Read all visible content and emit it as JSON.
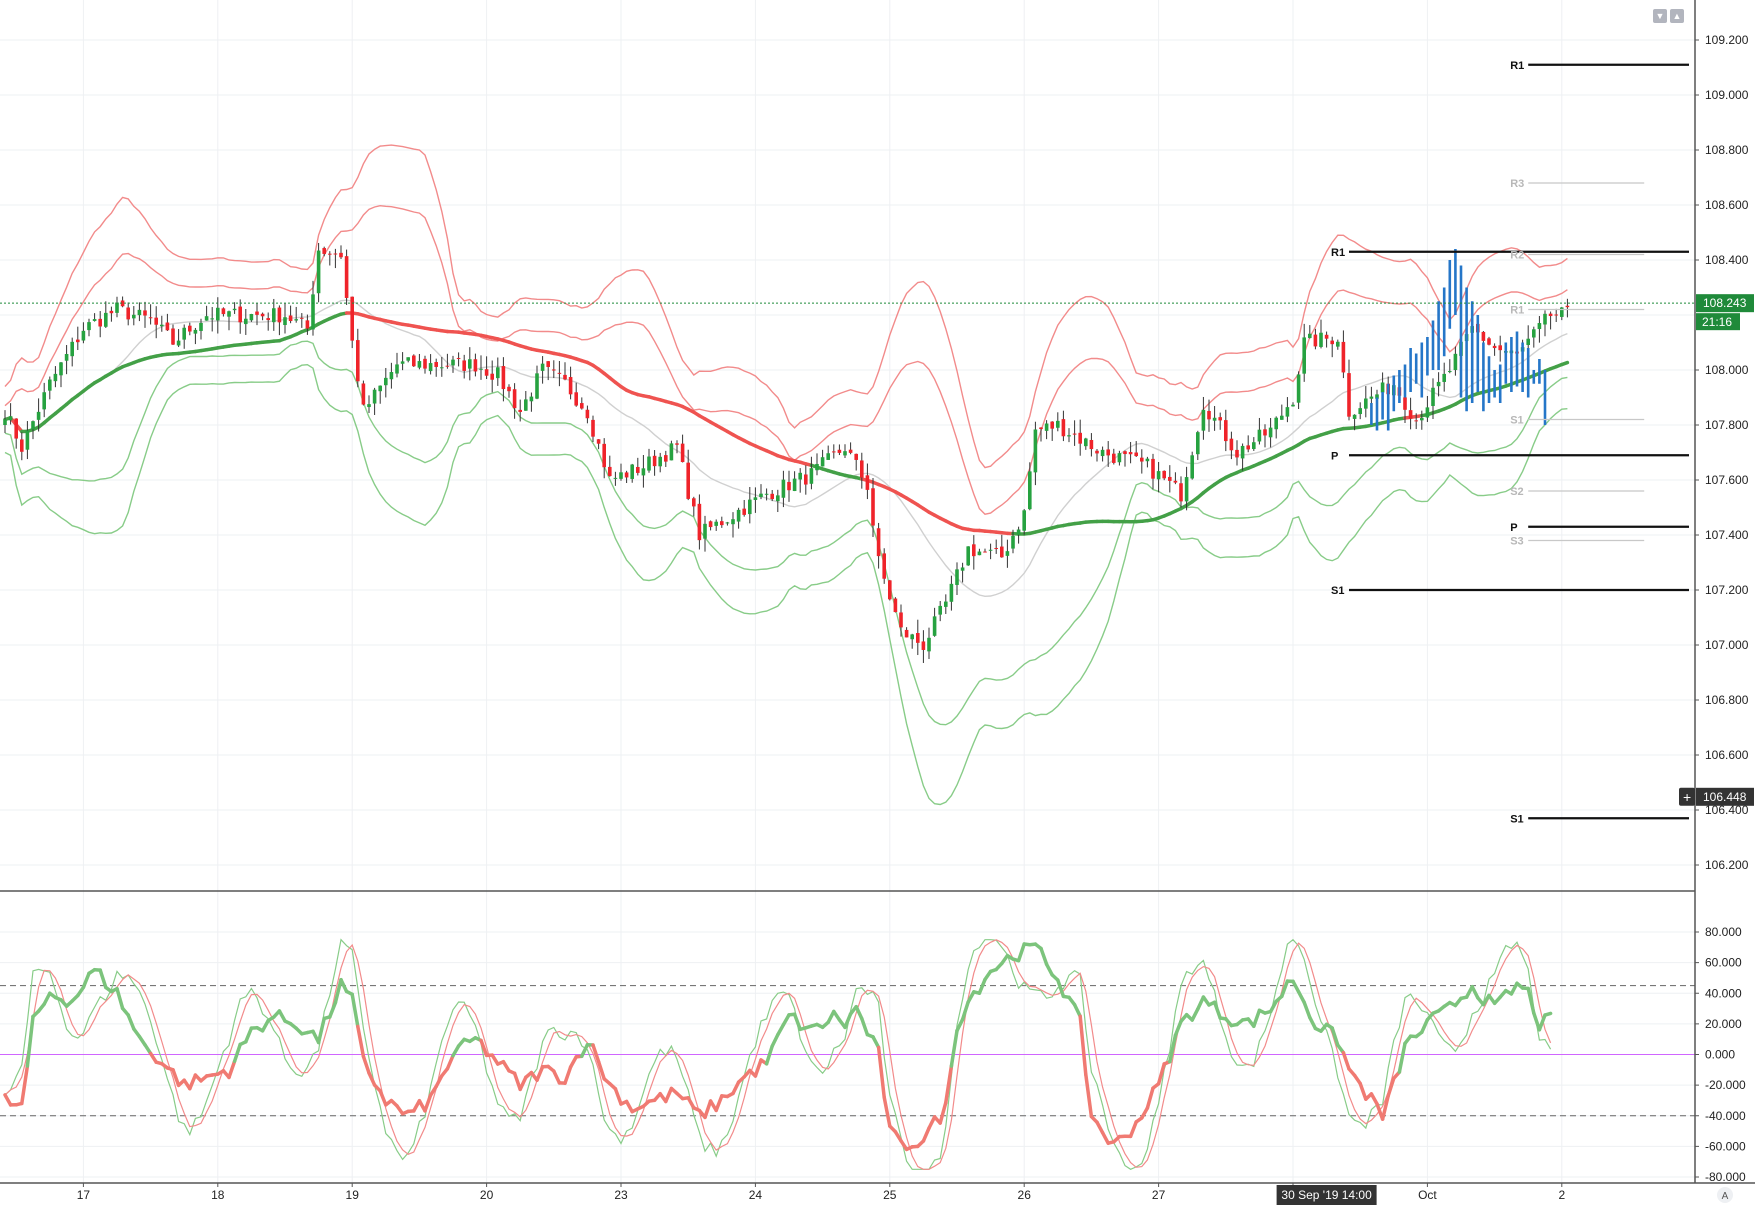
{
  "window": {
    "controls": [
      "collapse-down-icon",
      "collapse-up-icon"
    ]
  },
  "x_axis": {
    "tick_labels": [
      {
        "label": "17",
        "idx": 14
      },
      {
        "label": "18",
        "idx": 38
      },
      {
        "label": "19",
        "idx": 62
      },
      {
        "label": "20",
        "idx": 86
      },
      {
        "label": "23",
        "idx": 110
      },
      {
        "label": "24",
        "idx": 134
      },
      {
        "label": "25",
        "idx": 158
      },
      {
        "label": "26",
        "idx": 182
      },
      {
        "label": "27",
        "idx": 206
      },
      {
        "label": "30",
        "idx": 230
      },
      {
        "label": "Oct",
        "idx": 254
      },
      {
        "label": "2",
        "idx": 278
      }
    ],
    "crosshair_label": "30 Sep '19   14:00",
    "crosshair_idx": 236
  },
  "price_axis": {
    "ticks": [
      "109.200",
      "109.000",
      "108.800",
      "108.600",
      "108.400",
      "108.000",
      "107.800",
      "107.600",
      "107.400",
      "107.200",
      "107.000",
      "106.800",
      "106.600",
      "106.400",
      "106.200"
    ],
    "last_price_label": "108.243",
    "last_price": 108.243,
    "countdown_label": "21:16",
    "crosshair_label": "106.448",
    "crosshair_price": 106.448,
    "crosshair_plus_icon": "plus-icon",
    "auto_scale_label": "A"
  },
  "oscillator_axis": {
    "ticks": [
      "80.000",
      "60.000",
      "40.000",
      "20.000",
      "0.000",
      "-20.000",
      "-40.000",
      "-60.000",
      "-80.000"
    ]
  },
  "colors": {
    "up": "#26a240",
    "down": "#ef232a",
    "ma_red": "#ef5350",
    "ma_green": "#43a047",
    "band_red": "#f28b8b",
    "band_green": "#88cc88",
    "forecast": "#2576c8",
    "zero_line": "#d066ff",
    "grid": "#eef0f3",
    "pivot_gray": "#c8c8c8"
  },
  "chart_data": [
    {
      "type": "candlestick",
      "instrument_note": "",
      "y_range": [
        106.1,
        109.3
      ],
      "x_range_days": [
        "16",
        "17",
        "18",
        "19",
        "20",
        "23",
        "24",
        "25",
        "26",
        "27",
        "30",
        "Oct",
        "2"
      ],
      "last_price": 108.243,
      "pivot_sets": [
        {
          "level": "R1",
          "value": 109.11,
          "style": "black",
          "from_idx": 272,
          "to_idx": 290
        },
        {
          "level": "S1",
          "value": 106.37,
          "style": "black",
          "from_idx": 272,
          "to_idx": 290
        },
        {
          "level": "R1",
          "value": 108.43,
          "style": "black",
          "from_idx": 240,
          "to_idx": 290
        },
        {
          "level": "P",
          "value": 107.69,
          "style": "black",
          "from_idx": 240,
          "to_idx": 290
        },
        {
          "level": "S1",
          "value": 107.2,
          "style": "black",
          "from_idx": 240,
          "to_idx": 290
        },
        {
          "level": "P",
          "value": 107.43,
          "style": "black",
          "from_idx": 272,
          "to_idx": 290
        },
        {
          "level": "R3",
          "value": 108.68,
          "style": "gray",
          "from_idx": 272,
          "to_idx": 282
        },
        {
          "level": "R2",
          "value": 108.42,
          "style": "gray",
          "from_idx": 272,
          "to_idx": 282
        },
        {
          "level": "R1",
          "value": 108.22,
          "style": "gray",
          "from_idx": 272,
          "to_idx": 282
        },
        {
          "level": "S1",
          "value": 107.82,
          "style": "gray",
          "from_idx": 272,
          "to_idx": 282
        },
        {
          "level": "S2",
          "value": 107.56,
          "style": "gray",
          "from_idx": 272,
          "to_idx": 282
        },
        {
          "level": "S3",
          "value": 107.38,
          "style": "gray",
          "from_idx": 272,
          "to_idx": 282
        }
      ],
      "close_anchors": [
        [
          0,
          107.85
        ],
        [
          3,
          107.72
        ],
        [
          8,
          107.95
        ],
        [
          14,
          108.15
        ],
        [
          20,
          108.22
        ],
        [
          26,
          108.18
        ],
        [
          30,
          108.1
        ],
        [
          36,
          108.2
        ],
        [
          44,
          108.2
        ],
        [
          50,
          108.2
        ],
        [
          54,
          108.15
        ],
        [
          56,
          108.44
        ],
        [
          60,
          108.42
        ],
        [
          62,
          108.1
        ],
        [
          64,
          107.85
        ],
        [
          70,
          108.02
        ],
        [
          78,
          108.02
        ],
        [
          84,
          108.02
        ],
        [
          88,
          107.98
        ],
        [
          92,
          107.85
        ],
        [
          96,
          108.0
        ],
        [
          100,
          107.95
        ],
        [
          104,
          107.85
        ],
        [
          108,
          107.6
        ],
        [
          114,
          107.65
        ],
        [
          120,
          107.72
        ],
        [
          124,
          107.4
        ],
        [
          132,
          107.5
        ],
        [
          136,
          107.55
        ],
        [
          144,
          107.62
        ],
        [
          150,
          107.72
        ],
        [
          154,
          107.58
        ],
        [
          156,
          107.3
        ],
        [
          160,
          107.05
        ],
        [
          164,
          107.0
        ],
        [
          168,
          107.15
        ],
        [
          172,
          107.35
        ],
        [
          178,
          107.32
        ],
        [
          182,
          107.48
        ],
        [
          184,
          107.78
        ],
        [
          188,
          107.8
        ],
        [
          196,
          107.7
        ],
        [
          204,
          107.65
        ],
        [
          210,
          107.55
        ],
        [
          214,
          107.88
        ],
        [
          220,
          107.7
        ],
        [
          226,
          107.78
        ],
        [
          230,
          107.9
        ],
        [
          232,
          108.1
        ],
        [
          238,
          108.12
        ],
        [
          240,
          107.85
        ],
        [
          244,
          107.9
        ],
        [
          248,
          107.95
        ],
        [
          252,
          107.82
        ],
        [
          258,
          108.0
        ],
        [
          262,
          108.15
        ],
        [
          266,
          108.08
        ],
        [
          270,
          108.05
        ],
        [
          274,
          108.15
        ],
        [
          276,
          108.2
        ],
        [
          279,
          108.2
        ]
      ],
      "forecast_bars": [
        [
          244,
          107.8,
          107.88
        ],
        [
          245,
          107.78,
          107.9
        ],
        [
          246,
          107.82,
          107.92
        ],
        [
          247,
          107.78,
          107.95
        ],
        [
          248,
          107.85,
          107.98
        ],
        [
          249,
          107.88,
          108.0
        ],
        [
          250,
          107.9,
          108.02
        ],
        [
          251,
          107.92,
          108.08
        ],
        [
          252,
          107.95,
          108.06
        ],
        [
          253,
          107.9,
          108.1
        ],
        [
          254,
          107.98,
          108.12
        ],
        [
          255,
          108.0,
          108.18
        ],
        [
          256,
          108.0,
          108.25
        ],
        [
          257,
          108.05,
          108.3
        ],
        [
          258,
          108.15,
          108.4
        ],
        [
          259,
          108.2,
          108.44
        ],
        [
          260,
          107.9,
          108.38
        ],
        [
          261,
          107.85,
          108.3
        ],
        [
          262,
          107.88,
          108.25
        ],
        [
          263,
          107.92,
          108.2
        ],
        [
          264,
          107.85,
          108.1
        ],
        [
          265,
          107.88,
          108.05
        ],
        [
          266,
          107.9,
          108.0
        ],
        [
          267,
          107.88,
          108.02
        ],
        [
          268,
          107.95,
          108.1
        ],
        [
          269,
          107.92,
          108.12
        ],
        [
          270,
          107.94,
          108.14
        ],
        [
          271,
          107.92,
          108.1
        ],
        [
          272,
          107.9,
          108.08
        ],
        [
          273,
          107.95,
          108.0
        ],
        [
          274,
          107.95,
          108.04
        ],
        [
          275,
          107.8,
          108.0
        ]
      ],
      "last_idx": 279,
      "forecast_idx_end": 275
    },
    {
      "type": "line",
      "name": "",
      "y_range": [
        -80,
        80
      ],
      "levels": [
        45,
        0,
        -40
      ],
      "anchors": [
        [
          0,
          -30
        ],
        [
          3,
          -35
        ],
        [
          5,
          20
        ],
        [
          8,
          40
        ],
        [
          12,
          35
        ],
        [
          16,
          55
        ],
        [
          20,
          40
        ],
        [
          24,
          10
        ],
        [
          28,
          -5
        ],
        [
          32,
          -20
        ],
        [
          36,
          -15
        ],
        [
          40,
          -10
        ],
        [
          44,
          15
        ],
        [
          48,
          25
        ],
        [
          52,
          20
        ],
        [
          56,
          10
        ],
        [
          60,
          45
        ],
        [
          62,
          35
        ],
        [
          64,
          -5
        ],
        [
          68,
          -30
        ],
        [
          72,
          -40
        ],
        [
          76,
          -30
        ],
        [
          80,
          0
        ],
        [
          84,
          10
        ],
        [
          88,
          -5
        ],
        [
          92,
          -20
        ],
        [
          96,
          -10
        ],
        [
          100,
          -15
        ],
        [
          104,
          10
        ],
        [
          108,
          -20
        ],
        [
          112,
          -35
        ],
        [
          116,
          -30
        ],
        [
          120,
          -25
        ],
        [
          124,
          -40
        ],
        [
          128,
          -30
        ],
        [
          132,
          -15
        ],
        [
          136,
          -5
        ],
        [
          140,
          25
        ],
        [
          144,
          15
        ],
        [
          148,
          25
        ],
        [
          150,
          20
        ],
        [
          152,
          30
        ],
        [
          156,
          0
        ],
        [
          158,
          -50
        ],
        [
          160,
          -60
        ],
        [
          164,
          -55
        ],
        [
          168,
          -35
        ],
        [
          170,
          20
        ],
        [
          172,
          35
        ],
        [
          176,
          55
        ],
        [
          180,
          65
        ],
        [
          184,
          70
        ],
        [
          188,
          50
        ],
        [
          192,
          20
        ],
        [
          194,
          -40
        ],
        [
          198,
          -60
        ],
        [
          202,
          -45
        ],
        [
          206,
          -20
        ],
        [
          210,
          20
        ],
        [
          214,
          35
        ],
        [
          218,
          25
        ],
        [
          222,
          20
        ],
        [
          226,
          30
        ],
        [
          230,
          50
        ],
        [
          234,
          20
        ],
        [
          238,
          10
        ],
        [
          240,
          -10
        ],
        [
          242,
          -20
        ],
        [
          246,
          -40
        ],
        [
          248,
          -20
        ],
        [
          250,
          5
        ],
        [
          254,
          20
        ],
        [
          258,
          30
        ],
        [
          262,
          45
        ],
        [
          266,
          30
        ],
        [
          270,
          45
        ],
        [
          272,
          40
        ],
        [
          274,
          20
        ],
        [
          276,
          22
        ]
      ]
    }
  ]
}
